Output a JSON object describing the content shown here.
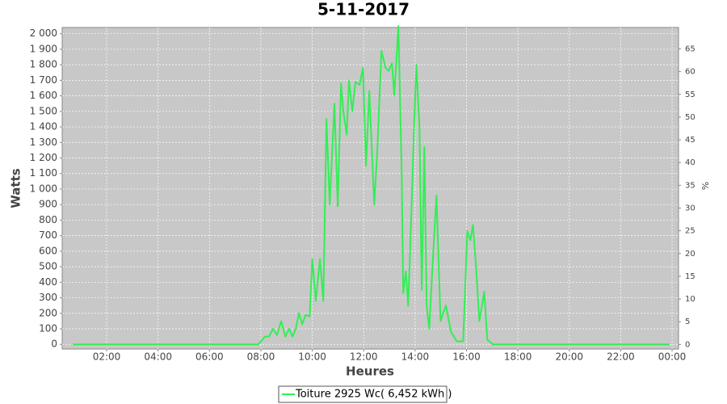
{
  "chart_data": {
    "type": "line",
    "title": "5-11-2017",
    "xlabel": "Heures",
    "ylabel": "Watts",
    "y2label": "%",
    "x": [
      0.68,
      7.9,
      8.16,
      8.32,
      8.47,
      8.63,
      8.79,
      8.95,
      9.1,
      9.23,
      9.36,
      9.48,
      9.61,
      9.74,
      9.9,
      10.0,
      10.14,
      10.3,
      10.43,
      10.55,
      10.68,
      10.86,
      10.99,
      11.12,
      11.21,
      11.34,
      11.43,
      11.56,
      11.68,
      11.84,
      11.97,
      12.09,
      12.22,
      12.41,
      12.53,
      12.69,
      12.85,
      12.97,
      13.1,
      13.19,
      13.35,
      13.48,
      13.54,
      13.64,
      13.73,
      13.85,
      13.95,
      14.05,
      14.17,
      14.26,
      14.36,
      14.45,
      14.55,
      14.67,
      14.83,
      14.99,
      15.2,
      15.4,
      15.62,
      15.87,
      16.03,
      16.15,
      16.25,
      16.37,
      16.5,
      16.69,
      16.81,
      17.03,
      23.9
    ],
    "series": [
      {
        "name": "Toiture 2925 Wc( 6,452 kWh )",
        "color": "#33ee55",
        "values": [
          0,
          0,
          50,
          50,
          100,
          60,
          150,
          50,
          100,
          50,
          100,
          200,
          130,
          190,
          180,
          550,
          280,
          550,
          280,
          1450,
          900,
          1550,
          890,
          1680,
          1500,
          1350,
          1700,
          1500,
          1690,
          1670,
          1780,
          1150,
          1630,
          900,
          1250,
          1890,
          1780,
          1760,
          1810,
          1600,
          2050,
          1100,
          330,
          470,
          250,
          820,
          1350,
          1800,
          1400,
          350,
          1270,
          250,
          100,
          480,
          960,
          150,
          250,
          80,
          20,
          20,
          730,
          670,
          770,
          500,
          150,
          340,
          30,
          0,
          0
        ]
      }
    ],
    "xlim": [
      0.27,
      24.25
    ],
    "xticks": [
      {
        "value": 2,
        "label": "02:00"
      },
      {
        "value": 4,
        "label": "04:00"
      },
      {
        "value": 6,
        "label": "06:00"
      },
      {
        "value": 8,
        "label": "08:00"
      },
      {
        "value": 10,
        "label": "10:00"
      },
      {
        "value": 12,
        "label": "12:00"
      },
      {
        "value": 14,
        "label": "14:00"
      },
      {
        "value": 16,
        "label": "16:00"
      },
      {
        "value": 18,
        "label": "18:00"
      },
      {
        "value": 20,
        "label": "20:00"
      },
      {
        "value": 22,
        "label": "22:00"
      },
      {
        "value": 24,
        "label": "00:00"
      }
    ],
    "ylim": [
      -30,
      2040
    ],
    "yticks": [
      0,
      100,
      200,
      300,
      400,
      500,
      600,
      700,
      800,
      900,
      {
        "value": 1000,
        "label": "1 000"
      },
      {
        "value": 1100,
        "label": "1 100"
      },
      {
        "value": 1200,
        "label": "1 200"
      },
      {
        "value": 1300,
        "label": "1 300"
      },
      {
        "value": 1400,
        "label": "1 400"
      },
      {
        "value": 1500,
        "label": "1 500"
      },
      {
        "value": 1600,
        "label": "1 600"
      },
      {
        "value": 1700,
        "label": "1 700"
      },
      {
        "value": 1800,
        "label": "1 800"
      },
      {
        "value": 1900,
        "label": "1 900"
      },
      {
        "value": 2000,
        "label": "2 000"
      }
    ],
    "y2lim": [
      -1,
      69.7
    ],
    "y2ticks": [
      0,
      5,
      10,
      15,
      20,
      25,
      30,
      35,
      40,
      45,
      50,
      55,
      60,
      65
    ],
    "grid": true
  }
}
